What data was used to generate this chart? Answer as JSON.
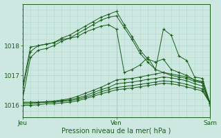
{
  "title": "",
  "xlabel": "Pression niveau de la mer( hPa )",
  "ylabel": "",
  "background_color": "#cce8e0",
  "grid_color": "#b0d8d0",
  "line_color": "#1a5c1a",
  "ylim": [
    1015.6,
    1019.4
  ],
  "xlim": [
    0,
    48
  ],
  "xtick_positions": [
    0,
    24,
    48
  ],
  "xtick_labels": [
    "Jeu",
    "Ven",
    "Sam"
  ],
  "ytick_positions": [
    1016,
    1017,
    1018
  ],
  "ytick_labels": [
    "1016",
    "1017",
    "1018"
  ],
  "lines": [
    [
      0,
      1016.5,
      2,
      1017.8,
      4,
      1018.0,
      6,
      1018.05,
      8,
      1018.1,
      10,
      1018.25,
      12,
      1018.35,
      14,
      1018.5,
      16,
      1018.65,
      18,
      1018.8,
      20,
      1018.95,
      22,
      1019.05,
      24,
      1019.15,
      26,
      1018.7,
      28,
      1018.3,
      30,
      1017.85,
      32,
      1017.55,
      34,
      1017.45,
      36,
      1017.55,
      38,
      1017.2,
      40,
      1017.1,
      42,
      1017.0,
      44,
      1016.85,
      46,
      1016.8,
      48,
      1016.0
    ],
    [
      0,
      1016.2,
      2,
      1017.6,
      4,
      1017.85,
      6,
      1017.9,
      8,
      1018.0,
      10,
      1018.15,
      12,
      1018.25,
      14,
      1018.4,
      16,
      1018.55,
      18,
      1018.7,
      20,
      1018.85,
      22,
      1018.95,
      24,
      1019.0,
      26,
      1018.6,
      28,
      1018.2,
      30,
      1017.75,
      32,
      1017.45,
      34,
      1017.2,
      36,
      1017.1,
      38,
      1017.0,
      40,
      1016.95,
      42,
      1016.9,
      44,
      1016.8,
      46,
      1016.75,
      48,
      1016.05
    ],
    [
      0,
      1016.1,
      2,
      1016.1,
      4,
      1016.1,
      6,
      1016.12,
      8,
      1016.14,
      10,
      1016.18,
      12,
      1016.22,
      14,
      1016.3,
      16,
      1016.4,
      18,
      1016.5,
      20,
      1016.6,
      22,
      1016.72,
      24,
      1016.85,
      26,
      1016.88,
      28,
      1016.9,
      30,
      1016.95,
      32,
      1017.0,
      34,
      1017.05,
      36,
      1017.1,
      38,
      1017.05,
      40,
      1017.0,
      42,
      1016.95,
      44,
      1016.85,
      46,
      1016.75,
      48,
      1016.05
    ],
    [
      0,
      1016.1,
      2,
      1016.1,
      4,
      1016.1,
      6,
      1016.12,
      8,
      1016.13,
      10,
      1016.16,
      12,
      1016.18,
      14,
      1016.24,
      16,
      1016.32,
      18,
      1016.42,
      20,
      1016.52,
      22,
      1016.6,
      24,
      1016.72,
      26,
      1016.75,
      28,
      1016.78,
      30,
      1016.82,
      32,
      1016.87,
      34,
      1016.9,
      36,
      1016.95,
      38,
      1016.92,
      40,
      1016.88,
      42,
      1016.82,
      44,
      1016.72,
      46,
      1016.65,
      48,
      1016.05
    ],
    [
      0,
      1016.05,
      2,
      1016.05,
      4,
      1016.08,
      6,
      1016.1,
      8,
      1016.1,
      10,
      1016.13,
      12,
      1016.15,
      14,
      1016.2,
      16,
      1016.27,
      18,
      1016.35,
      20,
      1016.45,
      22,
      1016.52,
      24,
      1016.6,
      26,
      1016.63,
      28,
      1016.66,
      30,
      1016.7,
      32,
      1016.74,
      34,
      1016.78,
      36,
      1016.82,
      38,
      1016.8,
      40,
      1016.76,
      42,
      1016.7,
      44,
      1016.62,
      46,
      1016.55,
      48,
      1016.05
    ],
    [
      0,
      1016.0,
      2,
      1016.0,
      4,
      1016.02,
      6,
      1016.05,
      8,
      1016.05,
      10,
      1016.08,
      12,
      1016.1,
      14,
      1016.15,
      16,
      1016.22,
      18,
      1016.3,
      20,
      1016.38,
      22,
      1016.45,
      24,
      1016.52,
      26,
      1016.55,
      28,
      1016.58,
      30,
      1016.62,
      32,
      1016.66,
      34,
      1016.7,
      36,
      1016.74,
      38,
      1016.72,
      40,
      1016.68,
      42,
      1016.62,
      44,
      1016.55,
      46,
      1016.48,
      48,
      1016.05
    ],
    [
      0,
      1016.6,
      2,
      1017.95,
      4,
      1018.0,
      6,
      1018.05,
      8,
      1018.1,
      10,
      1018.2,
      12,
      1018.25,
      14,
      1018.3,
      16,
      1018.45,
      18,
      1018.55,
      20,
      1018.65,
      22,
      1018.7,
      24,
      1018.55,
      26,
      1017.1,
      28,
      1017.2,
      30,
      1017.35,
      32,
      1017.6,
      34,
      1017.2,
      36,
      1018.55,
      38,
      1018.35,
      40,
      1017.65,
      42,
      1017.5,
      44,
      1016.95,
      46,
      1016.9,
      48,
      1016.05
    ]
  ]
}
